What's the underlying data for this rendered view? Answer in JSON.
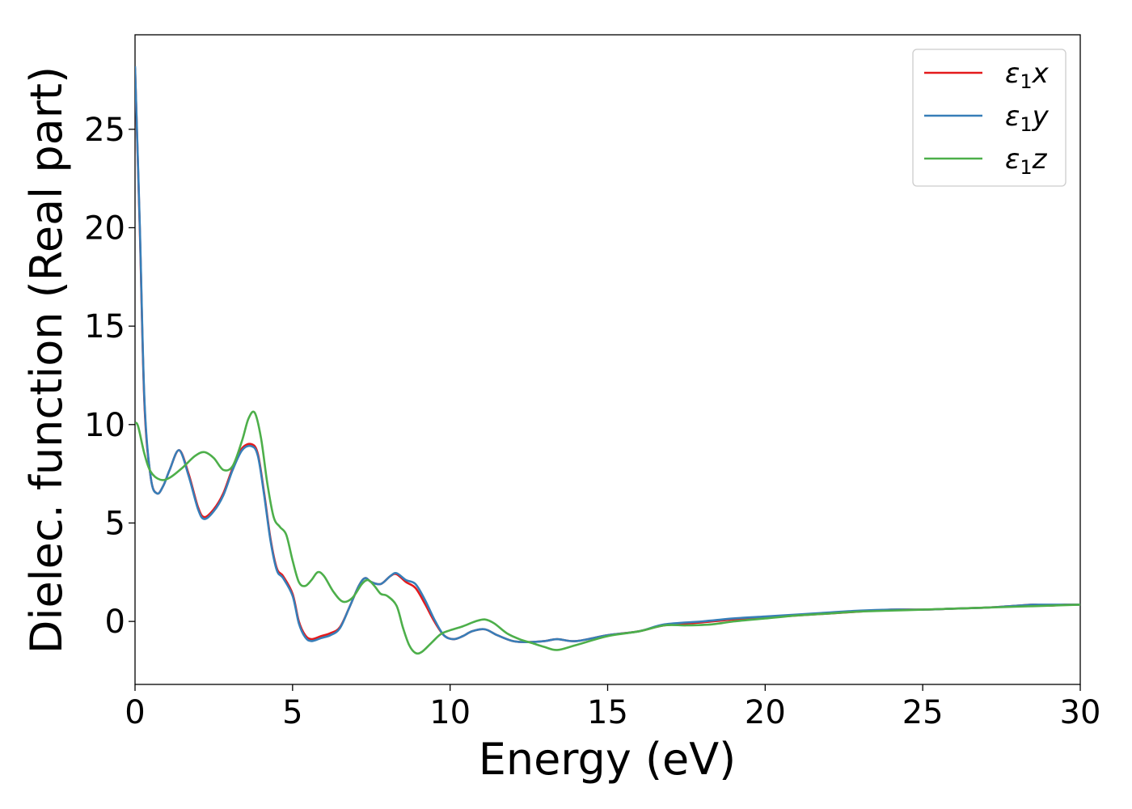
{
  "chart_data": {
    "type": "line",
    "xlabel": "Energy (eV)",
    "ylabel": "Dielec. function (Real part)",
    "xlim": [
      0,
      30
    ],
    "ylim": [
      -3.2,
      29.8
    ],
    "xticks": [
      0,
      5,
      10,
      15,
      20,
      25,
      30
    ],
    "yticks": [
      0,
      5,
      10,
      15,
      20,
      25
    ],
    "grid": false,
    "legend_position": "top-right",
    "series": [
      {
        "name": "x",
        "legend": {
          "base": "ε",
          "sub": "1",
          "suffix": "x"
        },
        "color": "#e41a1c",
        "x": [
          0.0,
          0.15,
          0.3,
          0.5,
          0.7,
          0.9,
          1.1,
          1.4,
          1.7,
          2.0,
          2.2,
          2.5,
          2.8,
          3.1,
          3.4,
          3.7,
          3.9,
          4.1,
          4.3,
          4.5,
          4.7,
          5.0,
          5.2,
          5.4,
          5.6,
          5.9,
          6.2,
          6.5,
          6.8,
          7.1,
          7.3,
          7.5,
          7.8,
          8.1,
          8.3,
          8.6,
          8.9,
          9.2,
          9.5,
          9.8,
          10.1,
          10.4,
          10.7,
          11.1,
          11.5,
          12.0,
          12.5,
          13.0,
          13.4,
          14.0,
          15.0,
          16.0,
          16.8,
          18.0,
          19.0,
          20.0,
          21.0,
          22.0,
          23.0,
          24.0,
          25.0,
          26.0,
          27.0,
          28.0,
          28.5,
          29.0,
          29.5,
          30.0
        ],
        "y": [
          28.1,
          20.0,
          11.0,
          7.3,
          6.5,
          6.9,
          7.7,
          8.7,
          7.5,
          5.8,
          5.3,
          5.7,
          6.5,
          7.8,
          8.8,
          9.0,
          8.5,
          6.5,
          4.2,
          2.7,
          2.3,
          1.4,
          0.0,
          -0.7,
          -0.9,
          -0.75,
          -0.6,
          -0.3,
          0.7,
          1.8,
          2.2,
          2.0,
          1.9,
          2.3,
          2.4,
          2.0,
          1.7,
          0.9,
          0.0,
          -0.7,
          -0.9,
          -0.75,
          -0.5,
          -0.4,
          -0.7,
          -1.0,
          -1.05,
          -1.0,
          -0.9,
          -1.0,
          -0.7,
          -0.5,
          -0.2,
          -0.05,
          0.1,
          0.2,
          0.3,
          0.4,
          0.5,
          0.6,
          0.6,
          0.65,
          0.7,
          0.8,
          0.85,
          0.8,
          0.85,
          0.85
        ]
      },
      {
        "name": "y",
        "legend": {
          "base": "ε",
          "sub": "1",
          "suffix": "y"
        },
        "color": "#377eb8",
        "x": [
          0.0,
          0.15,
          0.3,
          0.5,
          0.7,
          0.9,
          1.1,
          1.4,
          1.7,
          2.0,
          2.2,
          2.5,
          2.8,
          3.1,
          3.4,
          3.7,
          3.9,
          4.1,
          4.3,
          4.5,
          4.7,
          5.0,
          5.2,
          5.4,
          5.6,
          5.9,
          6.2,
          6.5,
          6.8,
          7.1,
          7.3,
          7.5,
          7.8,
          8.1,
          8.3,
          8.6,
          8.9,
          9.2,
          9.5,
          9.8,
          10.1,
          10.4,
          10.7,
          11.1,
          11.5,
          12.0,
          12.5,
          13.0,
          13.4,
          14.0,
          15.0,
          16.0,
          16.8,
          18.0,
          19.0,
          20.0,
          21.0,
          22.0,
          23.0,
          24.0,
          25.0,
          26.0,
          27.0,
          28.0,
          28.5,
          29.0,
          29.5,
          30.0
        ],
        "y": [
          28.2,
          20.2,
          11.2,
          7.3,
          6.5,
          6.9,
          7.7,
          8.7,
          7.4,
          5.7,
          5.2,
          5.6,
          6.4,
          7.7,
          8.7,
          8.9,
          8.4,
          6.4,
          4.1,
          2.6,
          2.2,
          1.3,
          -0.1,
          -0.8,
          -1.0,
          -0.85,
          -0.7,
          -0.35,
          0.7,
          1.8,
          2.2,
          2.0,
          1.9,
          2.3,
          2.45,
          2.1,
          1.9,
          1.1,
          0.1,
          -0.7,
          -0.9,
          -0.75,
          -0.5,
          -0.4,
          -0.7,
          -1.0,
          -1.05,
          -1.0,
          -0.9,
          -1.0,
          -0.7,
          -0.5,
          -0.15,
          0.0,
          0.15,
          0.25,
          0.35,
          0.45,
          0.55,
          0.6,
          0.6,
          0.65,
          0.7,
          0.8,
          0.85,
          0.85,
          0.85,
          0.85
        ]
      },
      {
        "name": "z",
        "legend": {
          "base": "ε",
          "sub": "1",
          "suffix": "z"
        },
        "color": "#4daf4a",
        "x": [
          0.0,
          0.1,
          0.3,
          0.5,
          0.8,
          1.1,
          1.5,
          1.9,
          2.2,
          2.5,
          2.8,
          3.1,
          3.4,
          3.6,
          3.8,
          4.0,
          4.2,
          4.4,
          4.6,
          4.8,
          5.0,
          5.2,
          5.4,
          5.6,
          5.8,
          6.0,
          6.3,
          6.6,
          6.9,
          7.2,
          7.4,
          7.6,
          7.8,
          8.0,
          8.3,
          8.5,
          8.7,
          8.9,
          9.1,
          9.4,
          9.7,
          10.0,
          10.4,
          10.8,
          11.1,
          11.4,
          11.8,
          12.2,
          12.6,
          13.0,
          13.4,
          14.0,
          15.0,
          16.0,
          16.8,
          17.5,
          18.3,
          19.0,
          20.0,
          21.0,
          22.0,
          23.0,
          24.0,
          25.0,
          26.0,
          27.0,
          28.0,
          29.0,
          30.0
        ],
        "y": [
          10.1,
          9.9,
          8.5,
          7.6,
          7.2,
          7.3,
          7.8,
          8.4,
          8.6,
          8.3,
          7.7,
          7.9,
          9.2,
          10.3,
          10.6,
          9.3,
          7.0,
          5.3,
          4.8,
          4.4,
          3.1,
          2.0,
          1.8,
          2.1,
          2.5,
          2.3,
          1.5,
          1.0,
          1.2,
          1.9,
          2.1,
          1.8,
          1.4,
          1.3,
          0.8,
          -0.3,
          -1.2,
          -1.6,
          -1.55,
          -1.1,
          -0.65,
          -0.45,
          -0.25,
          0.0,
          0.1,
          -0.1,
          -0.6,
          -0.9,
          -1.1,
          -1.3,
          -1.45,
          -1.2,
          -0.75,
          -0.5,
          -0.2,
          -0.2,
          -0.15,
          0.0,
          0.15,
          0.3,
          0.4,
          0.5,
          0.55,
          0.6,
          0.65,
          0.7,
          0.75,
          0.8,
          0.85
        ]
      }
    ]
  }
}
